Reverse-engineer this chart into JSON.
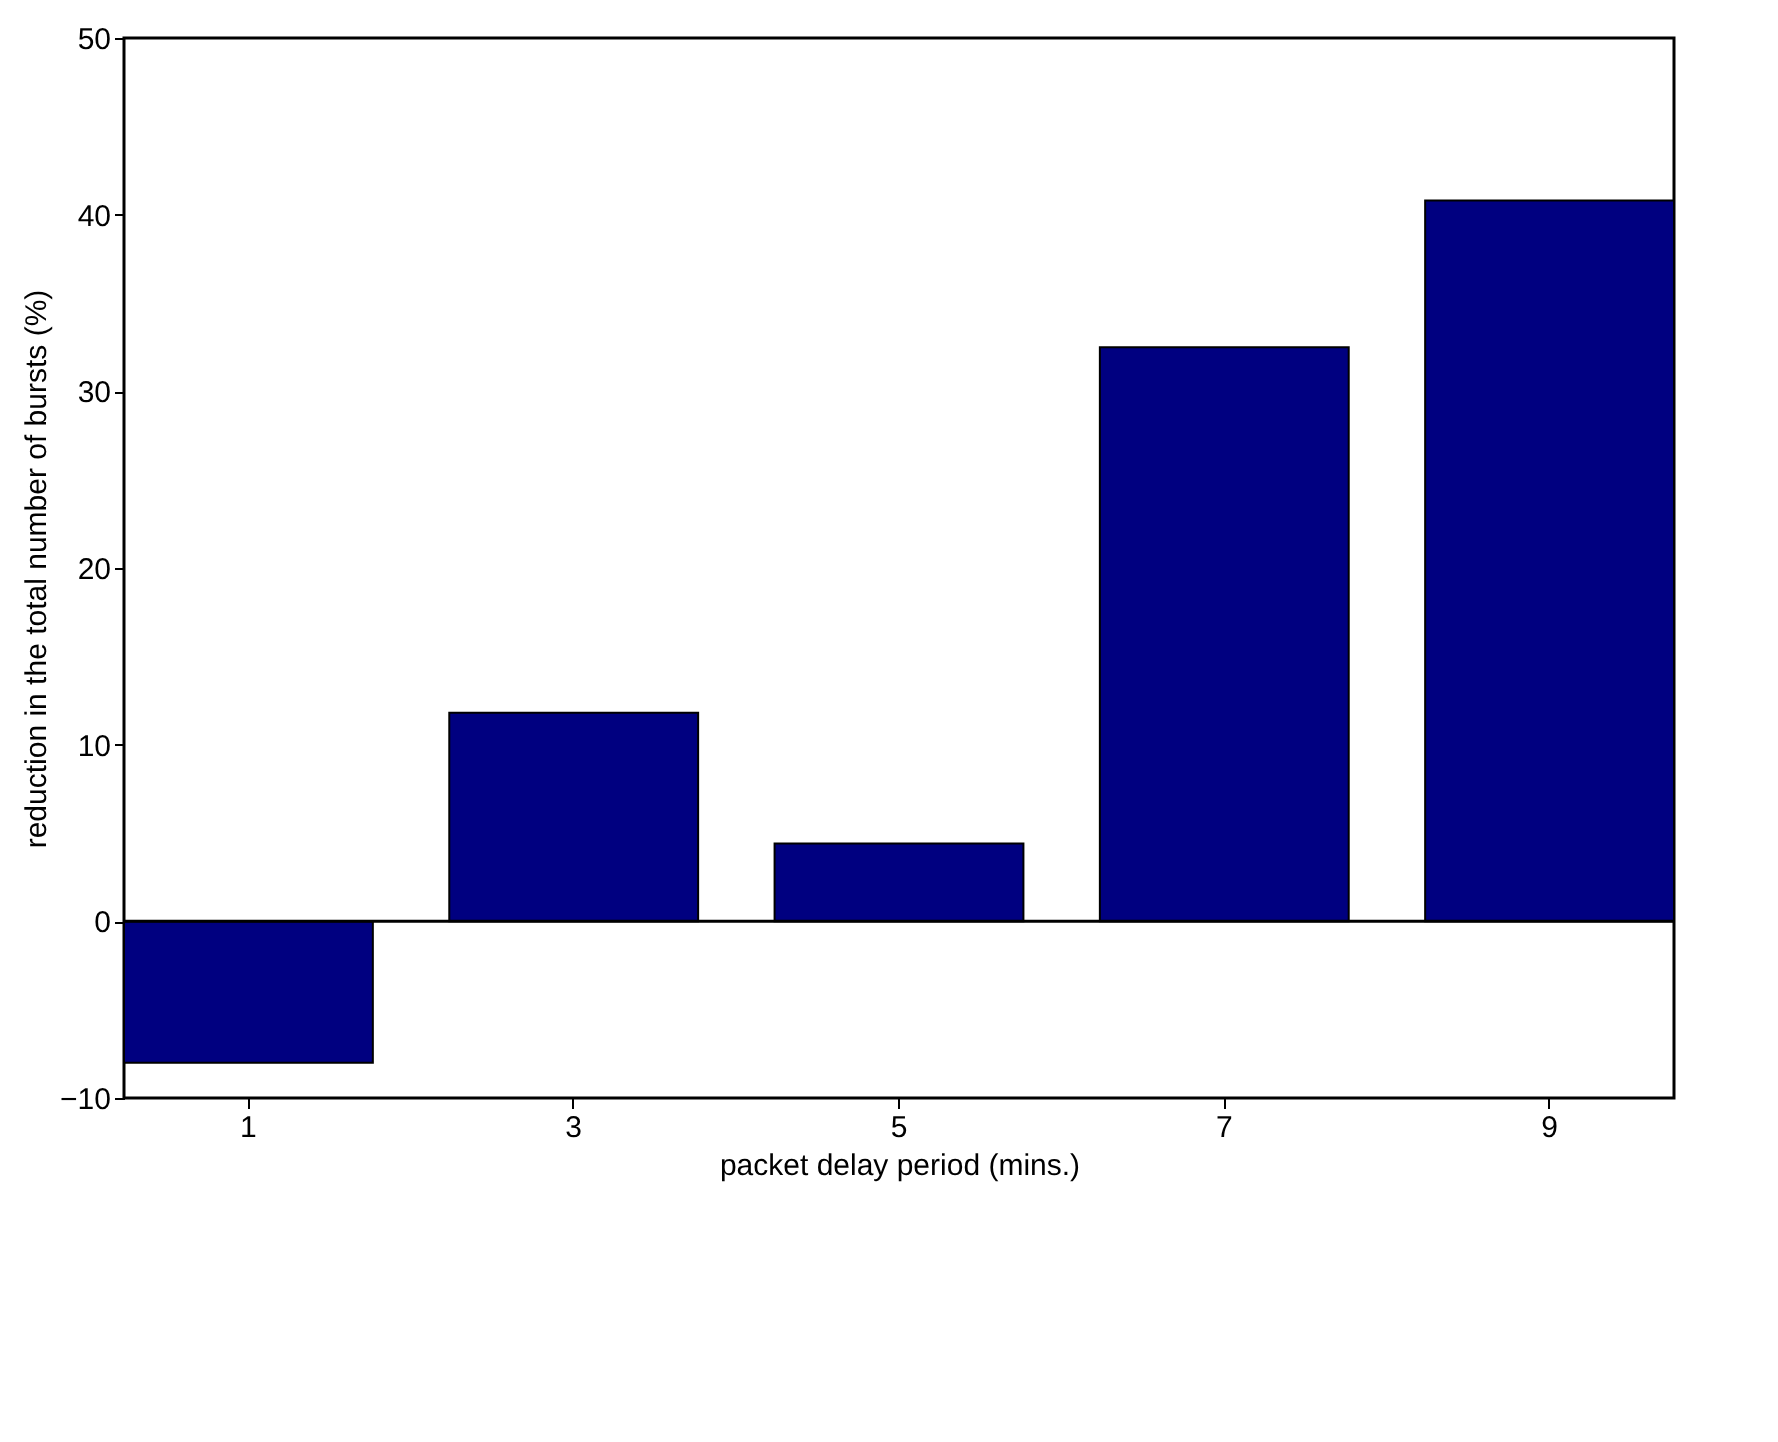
{
  "chart_data": {
    "type": "bar",
    "xlabel": "packet delay period (mins.)",
    "ylabel": "reduction in the total number of bursts (%)",
    "categories": [
      "1",
      "3",
      "5",
      "7",
      "9"
    ],
    "values": [
      -8.0,
      11.8,
      4.4,
      32.5,
      40.8
    ],
    "color": "#000080",
    "ylim": [
      -10,
      50
    ],
    "yticks": [
      -10,
      0,
      10,
      20,
      30,
      40,
      50
    ]
  }
}
